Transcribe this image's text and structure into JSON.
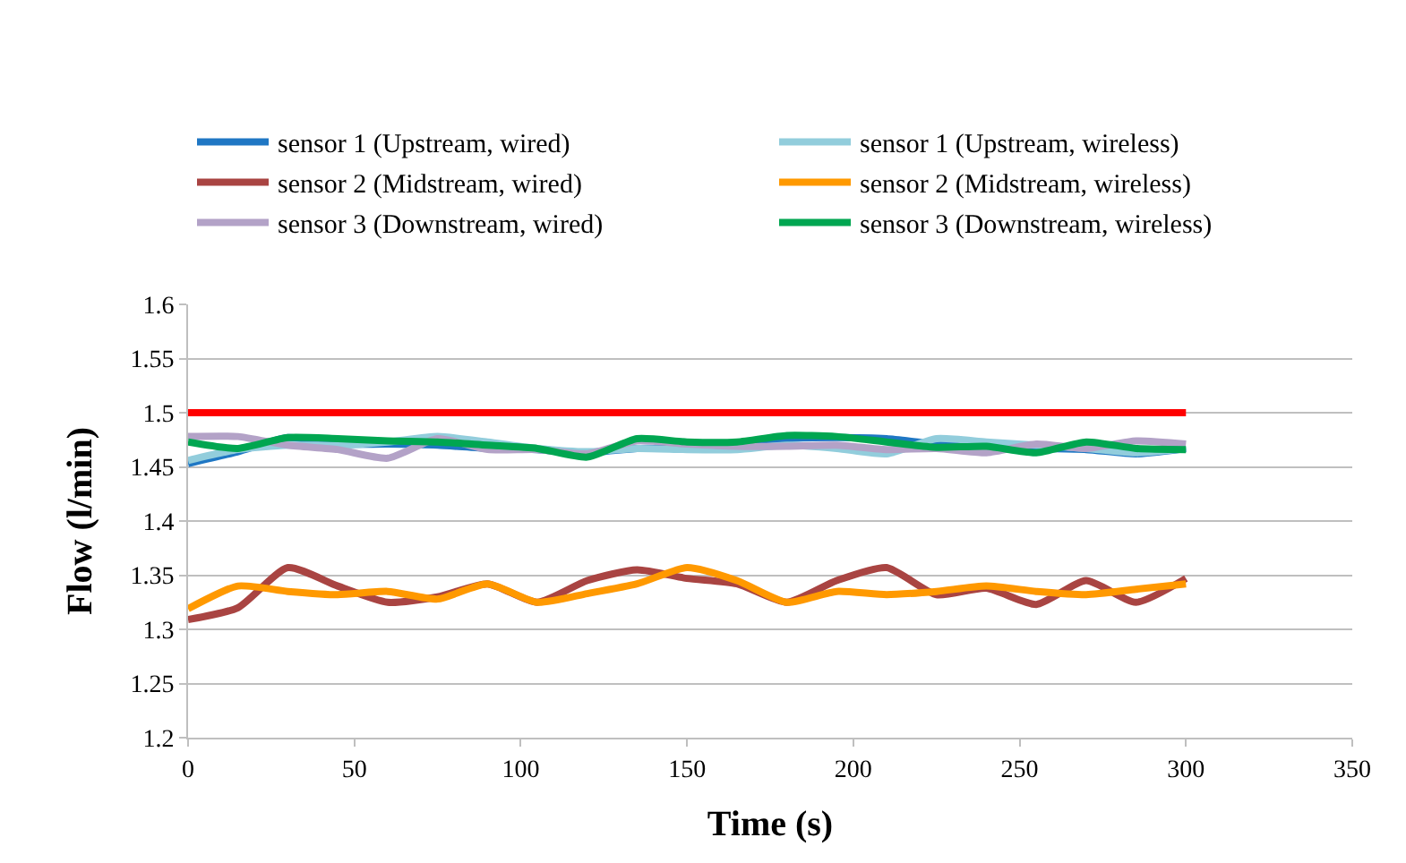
{
  "chart_data": {
    "type": "line",
    "xlabel": "Time (s)",
    "ylabel": "Flow (l/min)",
    "x": [
      0,
      15,
      30,
      45,
      60,
      75,
      90,
      105,
      120,
      135,
      150,
      165,
      180,
      195,
      210,
      225,
      240,
      255,
      270,
      285,
      300
    ],
    "xlim": [
      0,
      350
    ],
    "xticks": [
      0,
      50,
      100,
      150,
      200,
      250,
      300,
      350
    ],
    "ylim": [
      1.2,
      1.6
    ],
    "yticks": [
      1.2,
      1.25,
      1.3,
      1.35,
      1.4,
      1.45,
      1.5,
      1.55,
      1.6
    ],
    "grid": "y",
    "legend": "top",
    "marker": "none",
    "line_style": "solid",
    "series": [
      {
        "name": "sensor 1 (Upstream, wired)",
        "color": "#1f77c4",
        "values": [
          1.453,
          1.464,
          1.477,
          1.471,
          1.471,
          1.47,
          1.467,
          1.466,
          1.463,
          1.467,
          1.467,
          1.47,
          1.476,
          1.477,
          1.476,
          1.471,
          1.469,
          1.467,
          1.466,
          1.462,
          1.467
        ]
      },
      {
        "name": "sensor 1 (Upstream, wireless)",
        "color": "#92cddc",
        "values": [
          1.456,
          1.466,
          1.47,
          1.47,
          1.473,
          1.478,
          1.473,
          1.467,
          1.464,
          1.467,
          1.466,
          1.466,
          1.47,
          1.467,
          1.462,
          1.476,
          1.473,
          1.47,
          1.467,
          1.463,
          1.467
        ]
      },
      {
        "name": "sensor 2 (Midstream, wired)",
        "color": "#a94442",
        "values": [
          1.309,
          1.32,
          1.357,
          1.34,
          1.325,
          1.33,
          1.342,
          1.325,
          1.345,
          1.355,
          1.347,
          1.342,
          1.325,
          1.345,
          1.357,
          1.332,
          1.338,
          1.323,
          1.345,
          1.325,
          1.347
        ]
      },
      {
        "name": "sensor 2 (Midstream, wireless)",
        "color": "#ff9900",
        "values": [
          1.319,
          1.34,
          1.335,
          1.332,
          1.335,
          1.328,
          1.342,
          1.325,
          1.333,
          1.342,
          1.357,
          1.345,
          1.325,
          1.335,
          1.332,
          1.335,
          1.34,
          1.335,
          1.332,
          1.337,
          1.342
        ]
      },
      {
        "name": "sensor 3 (Downstream, wired)",
        "color": "#b3a2c7",
        "values": [
          1.478,
          1.478,
          1.47,
          1.466,
          1.458,
          1.476,
          1.466,
          1.466,
          1.462,
          1.474,
          1.471,
          1.469,
          1.469,
          1.47,
          1.466,
          1.467,
          1.463,
          1.471,
          1.467,
          1.474,
          1.471
        ]
      },
      {
        "name": "sensor 3 (Downstream, wireless)",
        "color": "#00a651",
        "values": [
          1.473,
          1.467,
          1.477,
          1.476,
          1.474,
          1.473,
          1.47,
          1.467,
          1.459,
          1.476,
          1.473,
          1.473,
          1.479,
          1.478,
          1.473,
          1.468,
          1.469,
          1.463,
          1.473,
          1.467,
          1.466
        ]
      },
      {
        "color": "#ff0000",
        "x": [
          0,
          300
        ],
        "values": [
          1.5,
          1.5
        ]
      }
    ]
  }
}
